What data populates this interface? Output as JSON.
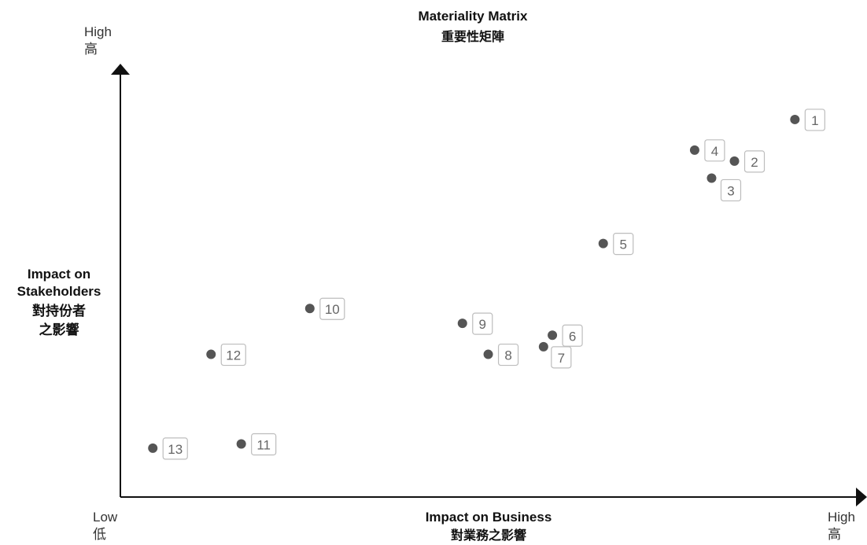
{
  "chart_data": {
    "type": "scatter",
    "title": "Materiality Matrix",
    "title_zh": "重要性矩陣",
    "xlabel": "Impact on Business",
    "xlabel_zh": "對業務之影響",
    "ylabel_lines": [
      "Impact on",
      "Stakeholders"
    ],
    "ylabel_zh_lines": [
      "對持份者",
      "之影響"
    ],
    "x_low": "Low",
    "x_low_zh": "低",
    "x_high": "High",
    "x_high_zh": "高",
    "y_high": "High",
    "y_high_zh": "高",
    "xlim": [
      0,
      100
    ],
    "ylim": [
      0,
      100
    ],
    "grid": false,
    "marker_color": "#555555",
    "points": [
      {
        "label": "1",
        "x": 91.5,
        "y": 88.9
      },
      {
        "label": "2",
        "x": 83.3,
        "y": 79.1
      },
      {
        "label": "3",
        "x": 80.2,
        "y": 75.1
      },
      {
        "label": "4",
        "x": 77.9,
        "y": 81.7
      },
      {
        "label": "5",
        "x": 65.5,
        "y": 59.7
      },
      {
        "label": "6",
        "x": 58.6,
        "y": 38.1
      },
      {
        "label": "7",
        "x": 57.4,
        "y": 35.4
      },
      {
        "label": "8",
        "x": 49.9,
        "y": 33.6
      },
      {
        "label": "9",
        "x": 46.4,
        "y": 40.9
      },
      {
        "label": "10",
        "x": 25.7,
        "y": 44.4
      },
      {
        "label": "11",
        "x": 16.4,
        "y": 12.5
      },
      {
        "label": "12",
        "x": 12.3,
        "y": 33.6
      },
      {
        "label": "13",
        "x": 4.4,
        "y": 11.5
      }
    ]
  }
}
